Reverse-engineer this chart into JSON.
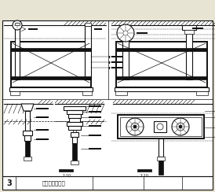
{
  "bg_color": "#e8e4d4",
  "line_color": "#111111",
  "white": "#ffffff",
  "title_text": "环保空调安装图",
  "page_num": "3",
  "fig_width": 2.74,
  "fig_height": 2.44,
  "dpi": 100
}
